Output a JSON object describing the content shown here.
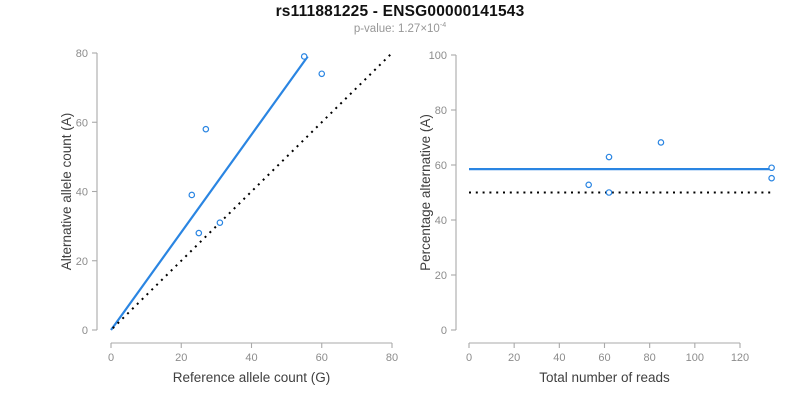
{
  "header": {
    "title": "rs111881225 - ENSG00000141543",
    "pvalue_label": "p-value: ",
    "pvalue_base": "1.27×10",
    "pvalue_exponent": "-4"
  },
  "chart_data": [
    {
      "type": "scatter",
      "name": "allele-counts-plot",
      "xlabel": "Reference allele count (G)",
      "ylabel": "Alternative allele count (A)",
      "xlim": [
        0,
        80
      ],
      "ylim": [
        0,
        80
      ],
      "xticks": [
        0,
        20,
        40,
        60,
        80
      ],
      "yticks": [
        0,
        20,
        40,
        60,
        80
      ],
      "grid": false,
      "legend": null,
      "point_color": "#2a85e2",
      "points": [
        [
          55,
          79
        ],
        [
          60,
          74
        ],
        [
          27,
          58
        ],
        [
          23,
          39
        ],
        [
          25,
          28
        ],
        [
          31,
          31
        ]
      ],
      "lines": [
        {
          "name": "fit-line",
          "style": "solid",
          "color": "#2a85e2",
          "from": [
            0,
            0
          ],
          "to": [
            56,
            79
          ]
        },
        {
          "name": "identity-line",
          "style": "dotted",
          "color": "#000000",
          "from": [
            0.5,
            0.5
          ],
          "to": [
            79.5,
            79.5
          ]
        }
      ]
    },
    {
      "type": "scatter",
      "name": "percentage-plot",
      "xlabel": "Total number of reads",
      "ylabel": "Percentage alternative (A)",
      "xlim": [
        0,
        135
      ],
      "ylim": [
        0,
        100
      ],
      "xticks": [
        0,
        20,
        40,
        60,
        80,
        100,
        120
      ],
      "yticks": [
        0,
        20,
        40,
        60,
        80,
        100
      ],
      "grid": false,
      "legend": null,
      "point_color": "#2a85e2",
      "points": [
        [
          53,
          52.8
        ],
        [
          62,
          62.9
        ],
        [
          62,
          50
        ],
        [
          85,
          68.2
        ],
        [
          134,
          59
        ],
        [
          134,
          55.2
        ]
      ],
      "lines": [
        {
          "name": "fit-line",
          "style": "solid",
          "color": "#2a85e2",
          "from": [
            0,
            58.5
          ],
          "to": [
            134.5,
            58.5
          ]
        },
        {
          "name": "reference-line",
          "style": "dotted",
          "color": "#000000",
          "from": [
            0,
            50
          ],
          "to": [
            134.5,
            50
          ]
        }
      ]
    }
  ]
}
